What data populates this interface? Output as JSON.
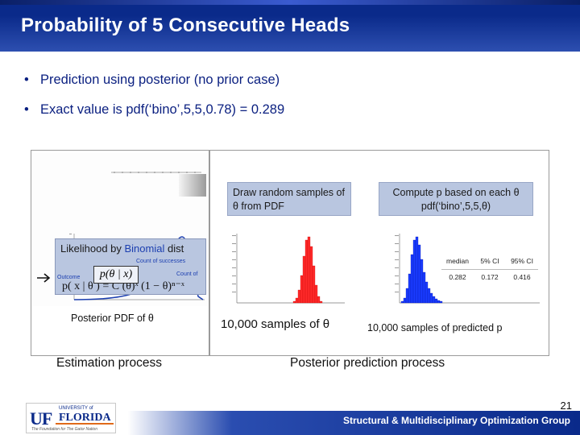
{
  "title": "Probability of 5 Consecutive Heads",
  "bullets": [
    "Prediction using posterior (no prior case)",
    "Exact value is pdf(‘bino’,5,5,0.78) =  0.289"
  ],
  "callouts": {
    "draw": "Draw random samples of θ from PDF",
    "compute": "Compute p based on each θ pdf(‘bino’,5,5,θ)"
  },
  "likelihood": {
    "title_prefix": "Likelihood by ",
    "title_blue": "Binomial",
    "title_suffix": " dist",
    "count_success": "Count of successes",
    "count_of": "Count of",
    "outcome": "Outcome",
    "formula": "p( x | θ ) = C (θ)ˣ (1 − θ)ⁿ⁻ˣ",
    "posterior": "p(θ | x)"
  },
  "captions": {
    "posterior_pdf": "Posterior PDF of θ",
    "samples_theta": "10,000 samples of θ",
    "samples_p": "10,000 samples of predicted p"
  },
  "sections": {
    "estimation": "Estimation process",
    "prediction": "Posterior prediction process"
  },
  "stats": {
    "headers": [
      "median",
      "5% CI",
      "95% CI"
    ],
    "values": [
      "0.282",
      "0.172",
      "0.416"
    ]
  },
  "page_number": "21",
  "footer": "Structural & Multidisciplinary Optimization Group",
  "logo": {
    "uf": "UF",
    "university_of": "UNIVERSITY of",
    "florida": "FLORIDA",
    "tagline": "The Foundation for The Gator Nation"
  }
}
